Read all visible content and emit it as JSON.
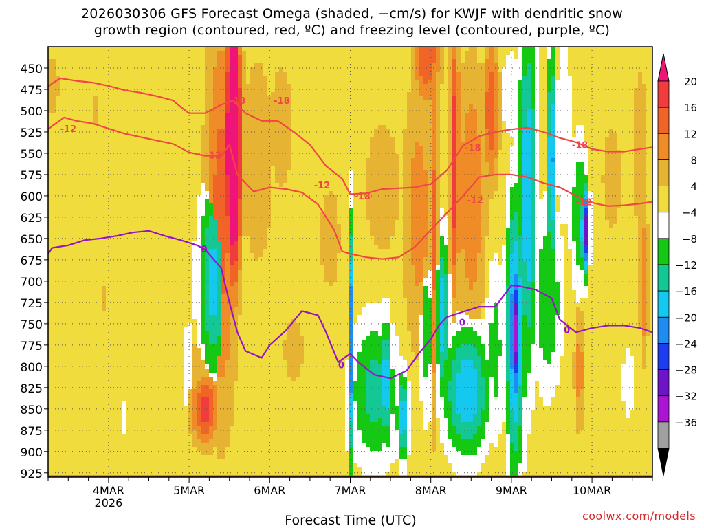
{
  "chart_data": {
    "type": "heatmap",
    "title": "2026030306 GFS Forecast Omega (shaded, −cm/s) for KWJF with dendritic snow",
    "subtitle": "growth region (contoured, red, ºC) and freezing level (contoured, purple, ºC)",
    "xlabel": "Forecast Time (UTC)",
    "ylabel": "",
    "x_ticks": [
      "4MAR",
      "5MAR",
      "6MAR",
      "7MAR",
      "8MAR",
      "9MAR",
      "10MAR"
    ],
    "x_year_label": "2026",
    "x_range_days": [
      3.25,
      10.75
    ],
    "y_ticks": [
      450,
      475,
      500,
      525,
      550,
      575,
      600,
      625,
      650,
      675,
      700,
      725,
      750,
      775,
      800,
      825,
      850,
      875,
      900,
      925
    ],
    "y_range": [
      425,
      930
    ],
    "grid": true,
    "colorbar": {
      "labels": [
        "20",
        "16",
        "12",
        "8",
        "4",
        "−4",
        "−8",
        "−12",
        "−16",
        "−20",
        "−24",
        "−28",
        "−32",
        "−36"
      ],
      "colors": [
        "#f01478",
        "#f03c3c",
        "#f06428",
        "#f08c28",
        "#e6b432",
        "#f0dc3c",
        "#ffffff",
        "#14c814",
        "#14c896",
        "#14c8f0",
        "#1e8cf0",
        "#1e3cf0",
        "#6e14c8",
        "#aa14d2",
        "#a0a0a0",
        "#000000"
      ]
    },
    "omega_blobs": [
      {
        "x": 5.55,
        "y": 540,
        "rx": 0.1,
        "ry": 160,
        "v": 36
      },
      {
        "x": 5.4,
        "y": 620,
        "rx": 0.22,
        "ry": 260,
        "v": 14
      },
      {
        "x": 5.2,
        "y": 850,
        "rx": 0.18,
        "ry": 45,
        "v": 18
      },
      {
        "x": 5.2,
        "y": 830,
        "rx": 0.28,
        "ry": 85,
        "v": 8
      },
      {
        "x": 5.4,
        "y": 770,
        "rx": 0.12,
        "ry": 70,
        "v": -8
      },
      {
        "x": 5.3,
        "y": 700,
        "rx": 0.2,
        "ry": 120,
        "v": -18
      },
      {
        "x": 5.0,
        "y": 800,
        "rx": 0.12,
        "ry": 80,
        "v": -6
      },
      {
        "x": 5.85,
        "y": 560,
        "rx": 0.22,
        "ry": 140,
        "v": 8
      },
      {
        "x": 6.15,
        "y": 520,
        "rx": 0.22,
        "ry": 110,
        "v": 6
      },
      {
        "x": 6.3,
        "y": 780,
        "rx": 0.18,
        "ry": 55,
        "v": 6
      },
      {
        "x": 6.5,
        "y": 550,
        "rx": 0.22,
        "ry": 140,
        "v": 4
      },
      {
        "x": 6.75,
        "y": 650,
        "rx": 0.18,
        "ry": 90,
        "v": 6
      },
      {
        "x": 7.0,
        "y": 770,
        "rx": 0.02,
        "ry": 150,
        "v": -36
      },
      {
        "x": 7.3,
        "y": 830,
        "rx": 0.32,
        "ry": 95,
        "v": -14
      },
      {
        "x": 7.3,
        "y": 880,
        "rx": 0.45,
        "ry": 50,
        "v": -8
      },
      {
        "x": 7.45,
        "y": 820,
        "rx": 0.08,
        "ry": 80,
        "v": -20
      },
      {
        "x": 7.65,
        "y": 860,
        "rx": 0.08,
        "ry": 55,
        "v": -20
      },
      {
        "x": 7.4,
        "y": 590,
        "rx": 0.25,
        "ry": 90,
        "v": 8
      },
      {
        "x": 7.85,
        "y": 620,
        "rx": 0.22,
        "ry": 180,
        "v": 10
      },
      {
        "x": 7.95,
        "y": 760,
        "rx": 0.1,
        "ry": 120,
        "v": -10
      },
      {
        "x": 7.95,
        "y": 430,
        "rx": 0.18,
        "ry": 70,
        "v": 16
      },
      {
        "x": 8.05,
        "y": 640,
        "rx": 0.05,
        "ry": 240,
        "v": 14
      },
      {
        "x": 8.15,
        "y": 740,
        "rx": 0.08,
        "ry": 100,
        "v": -20
      },
      {
        "x": 8.3,
        "y": 560,
        "rx": 0.06,
        "ry": 170,
        "v": 20
      },
      {
        "x": 8.5,
        "y": 600,
        "rx": 0.2,
        "ry": 170,
        "v": 12
      },
      {
        "x": 8.75,
        "y": 500,
        "rx": 0.1,
        "ry": 90,
        "v": 16
      },
      {
        "x": 8.45,
        "y": 830,
        "rx": 0.3,
        "ry": 80,
        "v": -20
      },
      {
        "x": 8.8,
        "y": 780,
        "rx": 0.12,
        "ry": 120,
        "v": -10
      },
      {
        "x": 9.05,
        "y": 760,
        "rx": 0.12,
        "ry": 170,
        "v": -24
      },
      {
        "x": 9.05,
        "y": 760,
        "rx": 0.05,
        "ry": 80,
        "v": -36
      },
      {
        "x": 9.2,
        "y": 600,
        "rx": 0.12,
        "ry": 220,
        "v": -20
      },
      {
        "x": 9.0,
        "y": 480,
        "rx": 0.14,
        "ry": 60,
        "v": -8
      },
      {
        "x": 9.35,
        "y": 450,
        "rx": 0.18,
        "ry": 60,
        "v": 4
      },
      {
        "x": 9.5,
        "y": 560,
        "rx": 0.05,
        "ry": 140,
        "v": -24
      },
      {
        "x": 9.45,
        "y": 720,
        "rx": 0.2,
        "ry": 120,
        "v": -12
      },
      {
        "x": 9.65,
        "y": 530,
        "rx": 0.12,
        "ry": 130,
        "v": -8
      },
      {
        "x": 9.92,
        "y": 640,
        "rx": 0.05,
        "ry": 55,
        "v": -32
      },
      {
        "x": 9.92,
        "y": 620,
        "rx": 0.015,
        "ry": 30,
        "v": -36
      },
      {
        "x": 9.85,
        "y": 620,
        "rx": 0.13,
        "ry": 100,
        "v": -12
      },
      {
        "x": 10.25,
        "y": 580,
        "rx": 0.18,
        "ry": 90,
        "v": 6
      },
      {
        "x": 9.85,
        "y": 805,
        "rx": 0.08,
        "ry": 80,
        "v": 10
      },
      {
        "x": 10.45,
        "y": 820,
        "rx": 0.08,
        "ry": 50,
        "v": -8
      },
      {
        "x": 10.6,
        "y": 550,
        "rx": 0.14,
        "ry": 150,
        "v": 6
      },
      {
        "x": 10.65,
        "y": 700,
        "rx": 0.06,
        "ry": 100,
        "v": 12
      },
      {
        "x": 3.3,
        "y": 470,
        "rx": 0.1,
        "ry": 40,
        "v": 8
      },
      {
        "x": 3.85,
        "y": 500,
        "rx": 0.05,
        "ry": 25,
        "v": 6
      },
      {
        "x": 3.95,
        "y": 720,
        "rx": 0.06,
        "ry": 25,
        "v": 6
      },
      {
        "x": 4.2,
        "y": 860,
        "rx": 0.01,
        "ry": 25,
        "v": -8
      }
    ],
    "dgz_upper_line": {
      "label": "-18",
      "label_points": [
        [
          5.5,
          488
        ],
        [
          6.05,
          488
        ],
        [
          7.05,
          600
        ],
        [
          8.42,
          543
        ],
        [
          9.75,
          540
        ]
      ],
      "x": [
        3.25,
        3.3,
        3.4,
        3.6,
        3.8,
        4.0,
        4.2,
        4.4,
        4.6,
        4.8,
        4.9,
        5.0,
        5.2,
        5.4,
        5.55,
        5.7,
        5.9,
        6.1,
        6.3,
        6.5,
        6.7,
        6.9,
        7.0,
        7.2,
        7.4,
        7.6,
        7.8,
        8.0,
        8.2,
        8.4,
        8.6,
        8.8,
        9.0,
        9.2,
        9.4,
        9.6,
        9.8,
        10.0,
        10.2,
        10.4,
        10.6,
        10.75
      ],
      "y": [
        472,
        468,
        462,
        465,
        467,
        471,
        476,
        479,
        483,
        488,
        496,
        503,
        503,
        493,
        488,
        503,
        512,
        512,
        525,
        540,
        565,
        580,
        598,
        597,
        592,
        591,
        590,
        586,
        570,
        541,
        530,
        525,
        522,
        520,
        525,
        532,
        537,
        545,
        548,
        548,
        545,
        543
      ]
    },
    "dgz_lower_line": {
      "label": "-12",
      "label_points": [
        [
          3.4,
          521
        ],
        [
          5.2,
          552
        ],
        [
          6.55,
          587
        ],
        [
          8.45,
          605
        ],
        [
          9.8,
          607
        ]
      ],
      "x": [
        3.25,
        3.3,
        3.45,
        3.6,
        3.8,
        4.0,
        4.2,
        4.4,
        4.6,
        4.8,
        5.0,
        5.2,
        5.4,
        5.5,
        5.6,
        5.8,
        6.0,
        6.2,
        6.4,
        6.6,
        6.8,
        6.9,
        7.0,
        7.2,
        7.4,
        7.6,
        7.8,
        8.0,
        8.2,
        8.4,
        8.6,
        8.8,
        9.0,
        9.2,
        9.4,
        9.6,
        9.8,
        10.0,
        10.2,
        10.4,
        10.6,
        10.75
      ],
      "y": [
        522,
        518,
        508,
        512,
        515,
        521,
        527,
        531,
        535,
        539,
        549,
        553,
        553,
        540,
        575,
        595,
        590,
        592,
        596,
        610,
        640,
        665,
        668,
        672,
        674,
        672,
        660,
        640,
        620,
        600,
        578,
        575,
        575,
        578,
        585,
        590,
        600,
        608,
        612,
        611,
        609,
        607
      ]
    },
    "freezing_level": {
      "label": "0",
      "label_points": [
        [
          5.15,
          662
        ],
        [
          6.85,
          798
        ],
        [
          8.35,
          748
        ],
        [
          9.65,
          757
        ]
      ],
      "x": [
        3.25,
        3.3,
        3.5,
        3.7,
        3.9,
        4.1,
        4.3,
        4.5,
        4.7,
        4.9,
        5.0,
        5.1,
        5.2,
        5.4,
        5.5,
        5.6,
        5.7,
        5.9,
        6.0,
        6.2,
        6.4,
        6.6,
        6.7,
        6.85,
        7.0,
        7.1,
        7.3,
        7.5,
        7.7,
        7.85,
        8.0,
        8.1,
        8.2,
        8.4,
        8.6,
        8.8,
        9.0,
        9.1,
        9.3,
        9.5,
        9.6,
        9.8,
        10.0,
        10.2,
        10.4,
        10.6,
        10.75
      ],
      "y": [
        668,
        661,
        658,
        652,
        650,
        647,
        643,
        641,
        647,
        652,
        655,
        658,
        663,
        685,
        725,
        760,
        782,
        790,
        775,
        758,
        735,
        740,
        760,
        795,
        785,
        795,
        810,
        814,
        805,
        785,
        768,
        752,
        742,
        736,
        730,
        730,
        705,
        706,
        710,
        720,
        745,
        760,
        755,
        752,
        752,
        755,
        760
      ]
    }
  },
  "credit": "coolwx.com/models"
}
